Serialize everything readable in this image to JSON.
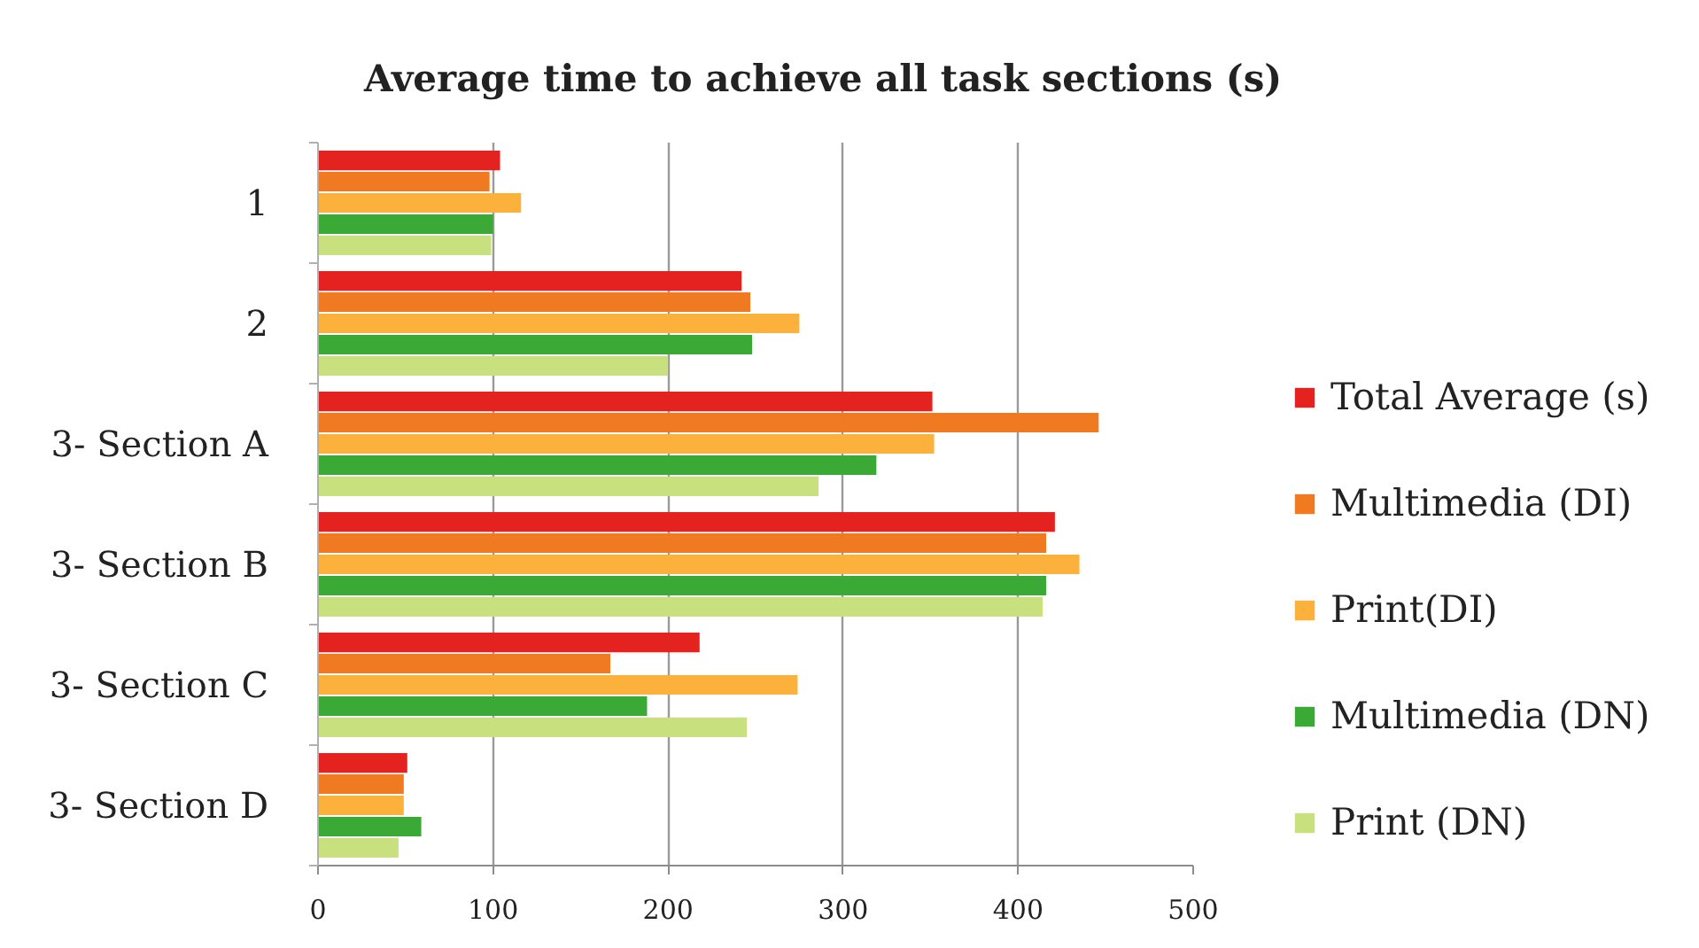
{
  "chart_data": {
    "type": "bar",
    "orientation": "horizontal",
    "title": "Average time to achieve all task sections (s)",
    "categories": [
      "1",
      "2",
      "3- Section A",
      "3- Section B",
      "3- Section C",
      "3- Section D"
    ],
    "series": [
      {
        "name": "Total Average (s)",
        "color": "#e42320",
        "values": [
          104,
          242,
          351,
          421,
          218,
          51
        ]
      },
      {
        "name": "Multimedia (DI)",
        "color": "#f07a22",
        "values": [
          98,
          247,
          446,
          416,
          167,
          49
        ]
      },
      {
        "name": "Print(DI)",
        "color": "#fbb13c",
        "values": [
          116,
          275,
          352,
          435,
          274,
          49
        ]
      },
      {
        "name": "Multimedia (DN)",
        "color": "#3aa935",
        "values": [
          100,
          248,
          319,
          416,
          188,
          59
        ]
      },
      {
        "name": "Print (DN)",
        "color": "#c8e07e",
        "values": [
          99,
          200,
          286,
          414,
          245,
          46
        ]
      }
    ],
    "xlim": [
      0,
      500
    ],
    "xticks": [
      0,
      100,
      200,
      300,
      400,
      500
    ],
    "grid": "x",
    "legend": "right"
  }
}
